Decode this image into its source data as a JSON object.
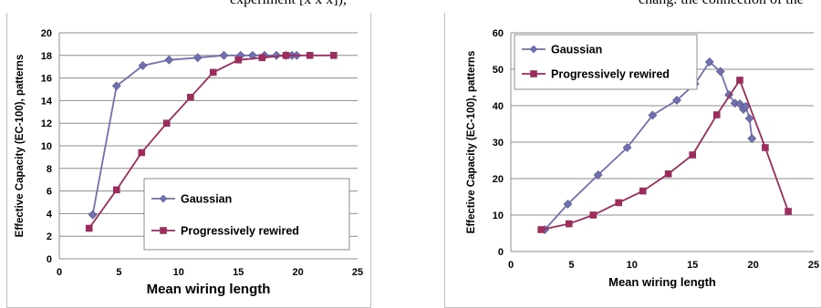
{
  "caption_fragments": {
    "left": "experiment [x x x]),",
    "right": "chang. the connection of the"
  },
  "chart_data": [
    {
      "type": "line",
      "title": "",
      "xlabel": "Mean wiring length",
      "ylabel": "Effective Capacity (EC-100), patterns",
      "xlim": [
        0,
        25
      ],
      "ylim": [
        0,
        20
      ],
      "xticks": [
        0,
        5,
        10,
        15,
        20,
        25
      ],
      "yticks": [
        0,
        2,
        4,
        6,
        8,
        10,
        12,
        14,
        16,
        18,
        20
      ],
      "grid": true,
      "legend_position": "bottom-right",
      "series": [
        {
          "name": "Gaussian",
          "color": "#7070b0",
          "marker": "diamond",
          "points": [
            [
              2.8,
              3.9
            ],
            [
              4.8,
              15.3
            ],
            [
              7.0,
              17.1
            ],
            [
              9.2,
              17.6
            ],
            [
              11.6,
              17.8
            ],
            [
              13.8,
              18.0
            ],
            [
              15.2,
              18.0
            ],
            [
              16.2,
              18.0
            ],
            [
              17.2,
              18.0
            ],
            [
              18.2,
              18.0
            ],
            [
              19.0,
              18.0
            ],
            [
              19.5,
              18.0
            ],
            [
              19.9,
              18.0
            ]
          ]
        },
        {
          "name": "Progressively rewired",
          "color": "#9b2c5c",
          "marker": "square",
          "points": [
            [
              2.5,
              2.7
            ],
            [
              4.8,
              6.1
            ],
            [
              6.9,
              9.4
            ],
            [
              9.0,
              12.0
            ],
            [
              11.0,
              14.3
            ],
            [
              12.9,
              16.5
            ],
            [
              15.0,
              17.6
            ],
            [
              17.0,
              17.8
            ],
            [
              19.0,
              18.0
            ],
            [
              21.0,
              18.0
            ],
            [
              23.0,
              18.0
            ]
          ]
        }
      ]
    },
    {
      "type": "line",
      "title": "",
      "xlabel": "Mean wiring length",
      "ylabel": "Effective Capacity (EC-100), patterns",
      "xlim": [
        0,
        25
      ],
      "ylim": [
        0,
        60
      ],
      "xticks": [
        0,
        5,
        10,
        15,
        20,
        25
      ],
      "yticks": [
        0,
        10,
        20,
        30,
        40,
        50,
        60
      ],
      "grid": true,
      "legend_position": "top-left",
      "series": [
        {
          "name": "Gaussian",
          "color": "#7070b0",
          "marker": "diamond",
          "points": [
            [
              2.8,
              6.0
            ],
            [
              4.7,
              13.0
            ],
            [
              7.2,
              21.0
            ],
            [
              9.6,
              28.5
            ],
            [
              11.7,
              37.4
            ],
            [
              13.7,
              41.5
            ],
            [
              15.2,
              46.0
            ],
            [
              16.4,
              52.0
            ],
            [
              17.3,
              49.4
            ],
            [
              18.0,
              43.0
            ],
            [
              18.5,
              40.7
            ],
            [
              18.9,
              40.5
            ],
            [
              19.2,
              39.0
            ],
            [
              19.4,
              39.8
            ],
            [
              19.7,
              36.5
            ],
            [
              19.9,
              31.0
            ]
          ]
        },
        {
          "name": "Progressively rewired",
          "color": "#9b2c5c",
          "marker": "square",
          "points": [
            [
              2.5,
              6.0
            ],
            [
              4.8,
              7.6
            ],
            [
              6.8,
              10.0
            ],
            [
              8.9,
              13.4
            ],
            [
              10.9,
              16.6
            ],
            [
              13.0,
              21.3
            ],
            [
              15.0,
              26.5
            ],
            [
              17.0,
              37.5
            ],
            [
              18.9,
              47.0
            ],
            [
              21.0,
              28.5
            ],
            [
              22.9,
              11.0
            ]
          ]
        }
      ]
    }
  ]
}
